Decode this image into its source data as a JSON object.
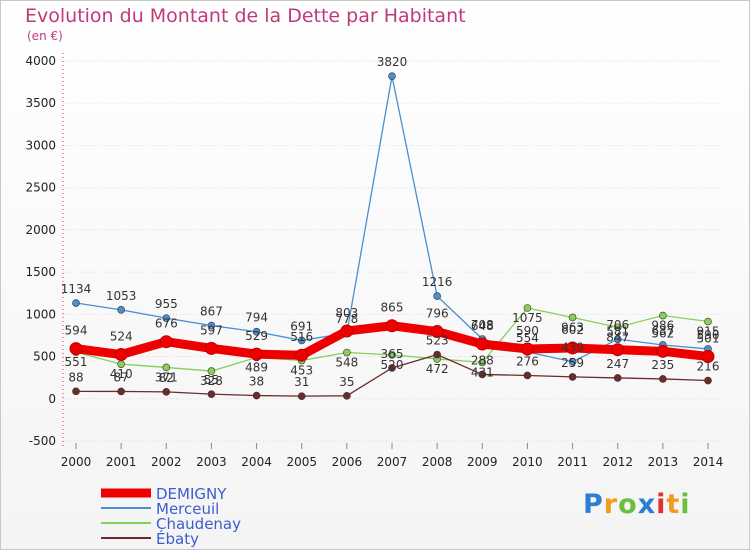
{
  "title": "Evolution du Montant de la Dette par Habitant",
  "unit_label": "(en €)",
  "logo": [
    "P",
    "r",
    "o",
    "x",
    "i",
    "t",
    "i"
  ],
  "chart_data": {
    "type": "line",
    "title": "Evolution du Montant de la Dette par Habitant",
    "ylabel": "(en €)",
    "x": [
      2000,
      2001,
      2002,
      2003,
      2004,
      2005,
      2006,
      2007,
      2008,
      2009,
      2010,
      2011,
      2012,
      2013,
      2014
    ],
    "ylim": [
      -500,
      4000
    ],
    "yticks": [
      -500,
      0,
      500,
      1000,
      1500,
      2000,
      2500,
      3000,
      3500,
      4000
    ],
    "legend_position": "bottom-left",
    "series": [
      {
        "name": "DEMIGNY",
        "color": "#ee0000",
        "values": [
          594,
          524,
          676,
          597,
          529,
          516,
          803,
          865,
          796,
          648,
          590,
          602,
          581,
          562,
          501
        ]
      },
      {
        "name": "Merceuil",
        "color": "#4a8fd0",
        "values": [
          1134,
          1053,
          955,
          867,
          794,
          691,
          778,
          3820,
          1216,
          708,
          554,
          439,
          706,
          637,
          590
        ]
      },
      {
        "name": "Chaudenay",
        "color": "#86d05a",
        "values": [
          551,
          410,
          371,
          328,
          489,
          453,
          548,
          520,
          472,
          431,
          1075,
          963,
          847,
          986,
          915
        ]
      },
      {
        "name": "Ébaty",
        "color": "#6e2b2b",
        "values": [
          88,
          87,
          82,
          55,
          38,
          31,
          35,
          365,
          523,
          288,
          276,
          259,
          247,
          235,
          216
        ]
      }
    ]
  }
}
